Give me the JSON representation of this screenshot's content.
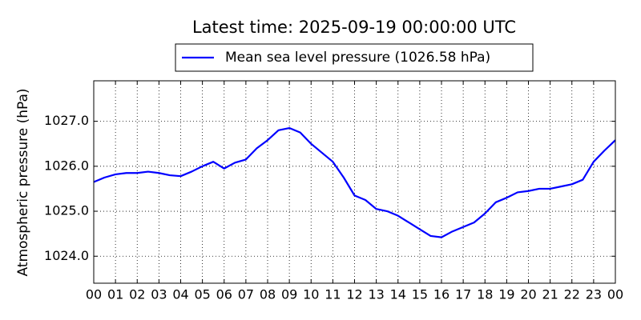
{
  "chart_data": {
    "type": "line",
    "title": "Latest time: 2025-09-19 00:00:00 UTC",
    "y_label": "Atmospheric pressure (hPa)",
    "x": [
      0,
      0.5,
      1,
      1.5,
      2,
      2.5,
      3,
      3.5,
      4,
      4.5,
      5,
      5.5,
      6,
      6.5,
      7,
      7.5,
      8,
      8.5,
      9,
      9.5,
      10,
      10.5,
      11,
      11.5,
      12,
      12.5,
      13,
      13.5,
      14,
      14.5,
      15,
      15.5,
      16,
      16.5,
      17,
      17.5,
      18,
      18.5,
      19,
      19.5,
      20,
      20.5,
      21,
      21.5,
      22,
      22.5,
      23,
      23.5,
      24
    ],
    "series": [
      {
        "name": "Mean sea level pressure (1026.58 hPa)",
        "color": "#0000ff",
        "values": [
          1025.65,
          1025.75,
          1025.82,
          1025.85,
          1025.85,
          1025.88,
          1025.85,
          1025.8,
          1025.78,
          1025.88,
          1026.0,
          1026.1,
          1025.95,
          1026.08,
          1026.15,
          1026.4,
          1026.58,
          1026.8,
          1026.85,
          1026.75,
          1026.5,
          1026.3,
          1026.1,
          1025.75,
          1025.35,
          1025.25,
          1025.05,
          1025.0,
          1024.9,
          1024.75,
          1024.6,
          1024.45,
          1024.42,
          1024.55,
          1024.65,
          1024.75,
          1024.95,
          1025.2,
          1025.3,
          1025.42,
          1025.45,
          1025.5,
          1025.5,
          1025.55,
          1025.6,
          1025.7,
          1026.1,
          1026.35,
          1026.58
        ]
      }
    ],
    "xlim": [
      0,
      24
    ],
    "xticks": [
      {
        "value": 0,
        "label": "00"
      },
      {
        "value": 1,
        "label": "01"
      },
      {
        "value": 2,
        "label": "02"
      },
      {
        "value": 3,
        "label": "03"
      },
      {
        "value": 4,
        "label": "04"
      },
      {
        "value": 5,
        "label": "05"
      },
      {
        "value": 6,
        "label": "06"
      },
      {
        "value": 7,
        "label": "07"
      },
      {
        "value": 8,
        "label": "08"
      },
      {
        "value": 9,
        "label": "09"
      },
      {
        "value": 10,
        "label": "10"
      },
      {
        "value": 11,
        "label": "11"
      },
      {
        "value": 12,
        "label": "12"
      },
      {
        "value": 13,
        "label": "13"
      },
      {
        "value": 14,
        "label": "14"
      },
      {
        "value": 15,
        "label": "15"
      },
      {
        "value": 16,
        "label": "16"
      },
      {
        "value": 17,
        "label": "17"
      },
      {
        "value": 18,
        "label": "18"
      },
      {
        "value": 19,
        "label": "19"
      },
      {
        "value": 20,
        "label": "20"
      },
      {
        "value": 21,
        "label": "21"
      },
      {
        "value": 22,
        "label": "22"
      },
      {
        "value": 23,
        "label": "23"
      },
      {
        "value": 24,
        "label": "00"
      }
    ],
    "ylim": [
      1023.4,
      1027.9
    ],
    "yticks": [
      {
        "value": 1024,
        "label": "1024.0"
      },
      {
        "value": 1025,
        "label": "1025.0"
      },
      {
        "value": 1026,
        "label": "1026.0"
      },
      {
        "value": 1027,
        "label": "1027.0"
      }
    ],
    "grid": true
  }
}
